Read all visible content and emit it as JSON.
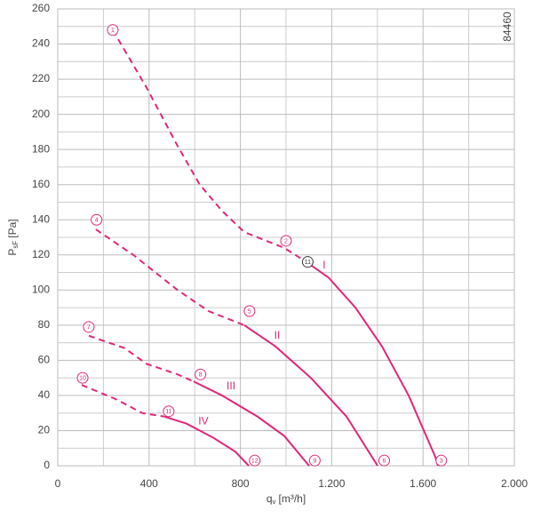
{
  "chart_data": {
    "type": "fan-curve",
    "xlabel": {
      "main": "q",
      "sub": "v",
      "unit": "[m³/h]"
    },
    "ylabel": {
      "main": "P",
      "sub": "sF",
      "unit": "[Pa]"
    },
    "code": "84460",
    "xlim": [
      0,
      2000
    ],
    "xticks": [
      0,
      400,
      800,
      {
        "value": 1200,
        "label": "1.200"
      },
      {
        "value": 1600,
        "label": "1.600"
      },
      {
        "value": 2000,
        "label": "2.000"
      }
    ],
    "xgrid_minor": [
      200,
      600,
      1000,
      1400,
      1800
    ],
    "ylim": [
      0,
      260
    ],
    "yticks": [
      0,
      20,
      40,
      60,
      80,
      100,
      120,
      140,
      160,
      180,
      200,
      220,
      240,
      260
    ],
    "ygrid_minor": [
      10,
      30,
      50,
      70,
      90,
      110,
      130,
      150,
      170,
      190,
      210,
      230,
      250
    ],
    "grid": true,
    "color": "#e0267a",
    "point_color": "#e0267a",
    "series": [
      {
        "name": "I",
        "label_x": 1167,
        "label_y": 114,
        "dashed": {
          "x": [
            241,
            390,
            525,
            622,
            720,
            817,
            914,
            992,
            1089
          ],
          "y": [
            248,
            215,
            182,
            160,
            145,
            133,
            128,
            124,
            116
          ]
        },
        "solid": {
          "x": [
            1089,
            1187,
            1304,
            1420,
            1537,
            1654,
            1665
          ],
          "y": [
            116,
            107,
            90,
            68,
            40,
            5,
            0
          ]
        }
      },
      {
        "name": "II",
        "label_x": 961,
        "label_y": 74,
        "dashed": {
          "x": [
            167,
            331,
            525,
            661,
            817
          ],
          "y": [
            134.5,
            120,
            100,
            88,
            80
          ]
        },
        "solid": {
          "x": [
            817,
            953,
            1109,
            1265,
            1401
          ],
          "y": [
            80,
            68,
            50,
            28,
            0
          ]
        }
      },
      {
        "name": "III",
        "label_x": 759,
        "label_y": 45,
        "dashed": {
          "x": [
            136,
            292,
            389,
            525,
            595
          ],
          "y": [
            74,
            67,
            58,
            52,
            48
          ]
        },
        "solid": {
          "x": [
            595,
            720,
            875,
            992,
            1101
          ],
          "y": [
            48,
            40,
            28,
            17,
            0
          ]
        }
      },
      {
        "name": "IV",
        "label_x": 638,
        "label_y": 25,
        "dashed": {
          "x": [
            105,
            253,
            370,
            467
          ],
          "y": [
            46,
            38,
            30,
            28
          ]
        },
        "solid": {
          "x": [
            467,
            564,
            681,
            778,
            837
          ],
          "y": [
            28,
            24,
            16,
            8,
            0
          ]
        }
      }
    ],
    "points": [
      {
        "label": "1",
        "x": 241,
        "y": 248
      },
      {
        "label": "2",
        "x": 1000,
        "y": 128
      },
      {
        "label": "3",
        "x": 1680,
        "y": 3
      },
      {
        "label": "4",
        "x": 170,
        "y": 140
      },
      {
        "label": "5",
        "x": 840,
        "y": 88
      },
      {
        "label": "6",
        "x": 1430,
        "y": 3
      },
      {
        "label": "7",
        "x": 136,
        "y": 79
      },
      {
        "label": "8",
        "x": 625,
        "y": 52
      },
      {
        "label": "9",
        "x": 1126,
        "y": 3
      },
      {
        "label": "10",
        "x": 109,
        "y": 50
      },
      {
        "label": "11",
        "x": 486,
        "y": 31
      },
      {
        "label": "11",
        "x": 1095,
        "y": 116,
        "color": "#333333"
      },
      {
        "label": "12",
        "x": 863,
        "y": 3
      }
    ]
  }
}
